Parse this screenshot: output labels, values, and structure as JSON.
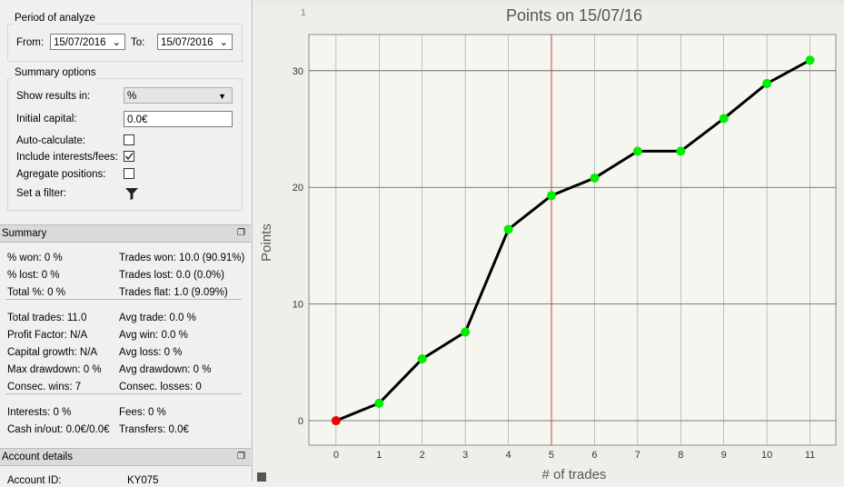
{
  "period": {
    "title": "Period of analyze",
    "from_label": "From:",
    "from_value": "15/07/2016",
    "to_label": "To:",
    "to_value": "15/07/2016"
  },
  "options": {
    "title": "Summary options",
    "show_results_label": "Show results in:",
    "show_results_value": "%",
    "initial_capital_label": "Initial capital:",
    "initial_capital_value": "0.0€",
    "auto_calculate_label": "Auto-calculate:",
    "auto_calculate": false,
    "include_fees_label": "Include interests/fees:",
    "include_fees": true,
    "aggregate_label": "Agregate positions:",
    "aggregate": false,
    "filter_label": "Set a filter:"
  },
  "summary": {
    "title": "Summary",
    "groups": [
      [
        [
          "% won: 0 %",
          "Trades won: 10.0 (90.91%)"
        ],
        [
          "% lost: 0 %",
          "Trades lost: 0.0 (0.0%)"
        ],
        [
          "Total %: 0 %",
          "Trades flat: 1.0 (9.09%)"
        ]
      ],
      [
        [
          "Total trades: 11.0",
          "Avg trade: 0.0 %"
        ],
        [
          "Profit Factor: N/A",
          "Avg win: 0.0 %"
        ],
        [
          "Capital growth: N/A",
          "Avg loss: 0 %"
        ],
        [
          "Max drawdown: 0 %",
          "Avg drawdown: 0 %"
        ],
        [
          "Consec. wins: 7",
          "Consec. losses: 0"
        ]
      ],
      [
        [
          "Interests: 0 %",
          "Fees: 0 %"
        ],
        [
          "Cash in/out: 0.0€/0.0€",
          "Transfers: 0.0€"
        ]
      ]
    ]
  },
  "account": {
    "title": "Account details",
    "id_label": "Account ID:",
    "id_value": "KY075"
  },
  "ruler_label": "1",
  "chart_data": {
    "type": "line",
    "title": "Points on 15/07/16",
    "x_label": "# of trades",
    "y_label": "Points",
    "x": [
      0,
      1,
      2,
      3,
      4,
      5,
      6,
      7,
      8,
      9,
      10,
      11
    ],
    "values": [
      0,
      1.5,
      5.3,
      7.6,
      16.4,
      19.3,
      20.8,
      23.1,
      23.1,
      25.9,
      28.9,
      30.9
    ],
    "point_colors": [
      "#ee0000",
      "#00ee00",
      "#00ee00",
      "#00ee00",
      "#00ee00",
      "#00ee00",
      "#00ee00",
      "#00ee00",
      "#00ee00",
      "#00ee00",
      "#00ee00",
      "#00ee00"
    ],
    "line_color": "#000000",
    "cursor_x": 5,
    "cursor_color": "#d04040",
    "xlim": [
      -0.63,
      11.6
    ],
    "ylim": [
      -2.1,
      33.1
    ],
    "xticks": [
      0,
      1,
      2,
      3,
      4,
      5,
      6,
      7,
      8,
      9,
      10,
      11
    ],
    "yticks": [
      0,
      10,
      20,
      30
    ],
    "grid": true
  }
}
